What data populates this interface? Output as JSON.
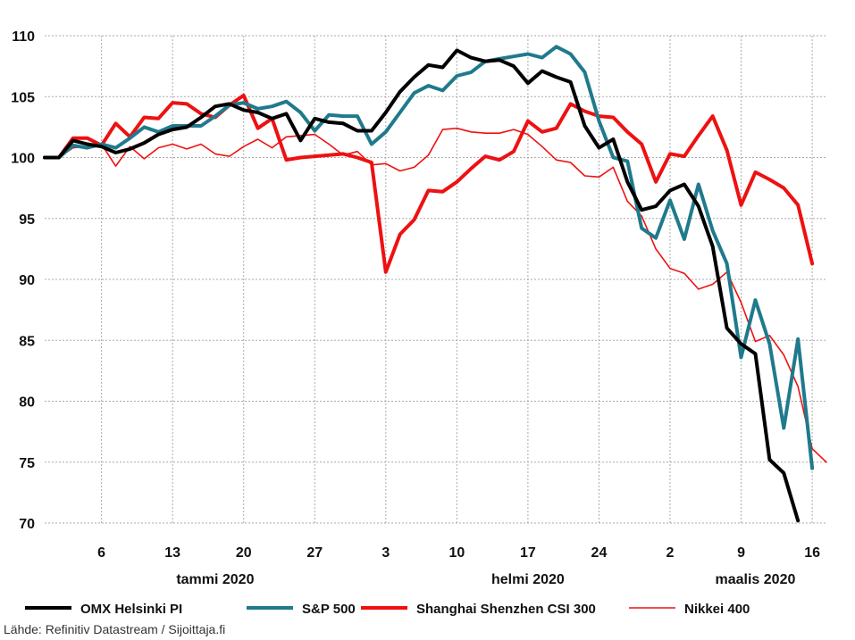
{
  "chart_data": {
    "type": "line",
    "title": "",
    "xlabel": "",
    "ylabel": "",
    "ylim": [
      70,
      110
    ],
    "y_ticks": [
      70,
      75,
      80,
      85,
      90,
      95,
      100,
      105,
      110
    ],
    "grid": true,
    "x_ticks": [
      {
        "index": 4,
        "label": "6"
      },
      {
        "index": 9,
        "label": "13"
      },
      {
        "index": 14,
        "label": "20"
      },
      {
        "index": 19,
        "label": "27"
      },
      {
        "index": 24,
        "label": "3"
      },
      {
        "index": 29,
        "label": "10"
      },
      {
        "index": 34,
        "label": "17"
      },
      {
        "index": 39,
        "label": "24"
      },
      {
        "index": 44,
        "label": "2"
      },
      {
        "index": 49,
        "label": "9"
      },
      {
        "index": 54,
        "label": "16"
      }
    ],
    "month_labels": [
      {
        "index": 12,
        "label": "tammi 2020"
      },
      {
        "index": 34,
        "label": "helmi 2020"
      },
      {
        "index": 50,
        "label": "maalis 2020"
      }
    ],
    "series": [
      {
        "name": "OMX Helsinki PI",
        "color": "#000000",
        "width": 4,
        "values": [
          100.0,
          100.0,
          101.4,
          101.1,
          100.9,
          100.4,
          100.7,
          101.2,
          101.9,
          102.3,
          102.5,
          103.3,
          104.2,
          104.4,
          103.9,
          103.7,
          103.2,
          103.6,
          101.4,
          103.2,
          102.9,
          102.8,
          102.2,
          102.2,
          103.7,
          105.4,
          106.6,
          107.6,
          107.4,
          108.8,
          108.2,
          107.9,
          108.0,
          107.5,
          106.1,
          107.1,
          106.6,
          106.2,
          102.6,
          100.8,
          101.5,
          98.0,
          95.7,
          96.0,
          97.3,
          97.8,
          96.0,
          92.7,
          86.0,
          84.7,
          83.9,
          75.2,
          74.1,
          70.2
        ]
      },
      {
        "name": "S&P 500",
        "color": "#1f7a8c",
        "width": 4,
        "values": [
          100.0,
          100.0,
          101.0,
          100.8,
          101.1,
          100.8,
          101.6,
          102.5,
          102.1,
          102.6,
          102.6,
          102.6,
          103.4,
          104.3,
          104.5,
          104.0,
          104.2,
          104.6,
          103.7,
          102.2,
          103.5,
          103.4,
          103.4,
          101.1,
          102.1,
          103.7,
          105.3,
          105.9,
          105.5,
          106.7,
          107.0,
          107.9,
          108.1,
          108.3,
          108.5,
          108.2,
          109.1,
          108.5,
          107.0,
          103.0,
          100.0,
          99.7,
          94.2,
          93.4,
          96.5,
          93.3,
          97.8,
          94.0,
          91.3,
          83.6,
          88.3,
          84.7,
          77.8,
          85.1,
          74.5
        ]
      },
      {
        "name": "Shanghai Shenzhen CSI 300",
        "color": "#ee1111",
        "width": 4,
        "values": [
          100.0,
          100.0,
          101.6,
          101.6,
          101.0,
          102.8,
          101.7,
          103.3,
          103.2,
          104.5,
          104.4,
          103.6,
          103.3,
          104.3,
          105.1,
          102.4,
          103.2,
          99.8,
          100.0,
          100.1,
          100.2,
          100.3,
          100.0,
          99.6,
          90.6,
          93.7,
          94.9,
          97.3,
          97.2,
          98.0,
          99.1,
          100.1,
          99.8,
          100.5,
          103.0,
          102.1,
          102.4,
          104.4,
          103.8,
          103.4,
          103.3,
          102.1,
          101.1,
          98.0,
          100.3,
          100.1,
          101.8,
          103.4,
          100.6,
          96.1,
          98.8,
          98.2,
          97.5,
          96.1,
          91.3
        ]
      },
      {
        "name": "Nikkei 400",
        "color": "#ee1111",
        "width": 1.6,
        "values": [
          100.0,
          100.0,
          100.8,
          100.9,
          101.1,
          99.3,
          100.9,
          99.9,
          100.8,
          101.1,
          100.7,
          101.1,
          100.3,
          100.1,
          100.9,
          101.5,
          100.8,
          101.7,
          101.8,
          101.9,
          101.1,
          100.2,
          100.5,
          99.4,
          99.5,
          98.9,
          99.2,
          100.2,
          102.3,
          102.4,
          102.1,
          102.0,
          102.0,
          102.3,
          101.9,
          100.9,
          99.8,
          99.6,
          98.5,
          98.4,
          99.2,
          96.4,
          95.2,
          92.5,
          90.9,
          90.5,
          89.2,
          89.6,
          90.6,
          88.1,
          84.9,
          85.4,
          83.8,
          81.2,
          76.1,
          75.0
        ]
      }
    ],
    "legend_position": "bottom"
  },
  "source": "Lähde: Refinitiv Datastream / Sijoittaja.fi"
}
